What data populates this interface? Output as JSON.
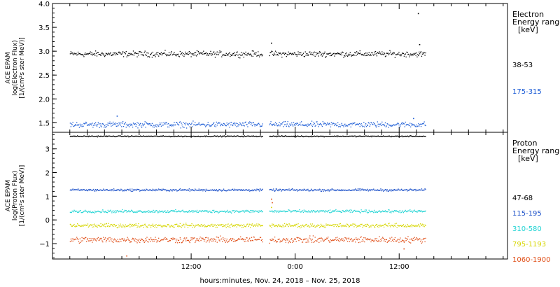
{
  "chart_data": [
    {
      "type": "scatter",
      "panel": "electron",
      "ylabel_lines": [
        "ACE EPAM",
        "log(Electron Flux)",
        "[1/(cm²s ster MeV)]"
      ],
      "ylim": [
        1.3,
        4.0
      ],
      "yticks": [
        {
          "value": 1.5,
          "label": "1.5"
        },
        {
          "value": 2.0,
          "label": "2.0"
        },
        {
          "value": 2.5,
          "label": "2.5"
        },
        {
          "value": 3.0,
          "label": "3.0"
        },
        {
          "value": 3.5,
          "label": "3.5"
        },
        {
          "value": 4.0,
          "label": "4.0"
        }
      ],
      "legend_title": [
        "Electron",
        "Energy ranges",
        "[keV]"
      ],
      "series": [
        {
          "name": "38-53",
          "color": "#000000",
          "level": 2.95,
          "spread": 0.05,
          "outliers": [
            {
              "x": -2.8,
              "y": 3.18
            },
            {
              "x": 14.15,
              "y": 3.8
            },
            {
              "x": 14.3,
              "y": 3.15
            }
          ]
        },
        {
          "name": "175-315",
          "color": "#1a5bd6",
          "level": 1.47,
          "spread": 0.05,
          "outliers": [
            {
              "x": -20.6,
              "y": 1.65
            },
            {
              "x": 13.6,
              "y": 1.6
            }
          ]
        }
      ]
    },
    {
      "type": "scatter",
      "panel": "proton",
      "ylabel_lines": [
        "ACE EPAM",
        "log(Proton Flux)",
        "[1/(cm²s ster MeV)]"
      ],
      "ylim": [
        -1.65,
        3.7
      ],
      "yticks": [
        {
          "value": -1,
          "label": "−1"
        },
        {
          "value": 0,
          "label": "0"
        },
        {
          "value": 1,
          "label": "1"
        },
        {
          "value": 2,
          "label": "2"
        },
        {
          "value": 3,
          "label": "3"
        }
      ],
      "legend_title": [
        "Proton",
        "Energy ranges",
        "[keV]"
      ],
      "series": [
        {
          "name": "47-68",
          "color": "#000000",
          "level": 3.55,
          "spread": 0.02,
          "outliers": []
        },
        {
          "name": "115-195",
          "color": "#1a4fc8",
          "level": 1.28,
          "spread": 0.04,
          "outliers": []
        },
        {
          "name": "310-580",
          "color": "#22d4d4",
          "level": 0.38,
          "spread": 0.05,
          "outliers": []
        },
        {
          "name": "795-1193",
          "color": "#d6d600",
          "level": -0.22,
          "spread": 0.07,
          "outliers": [
            {
              "x": -2.8,
              "y": 0.55
            }
          ]
        },
        {
          "name": "1060-1900",
          "color": "#e0501a",
          "level": -0.82,
          "spread": 0.11,
          "outliers": [
            {
              "x": -2.8,
              "y": 0.9
            },
            {
              "x": -2.7,
              "y": 0.75
            },
            {
              "x": -19.5,
              "y": -1.5
            },
            {
              "x": 12.5,
              "y": -1.2
            }
          ]
        }
      ]
    }
  ],
  "x_axis": {
    "range_hours": [
      -28,
      24.5
    ],
    "ticks": [
      {
        "value": -12,
        "label": "12:00"
      },
      {
        "value": 0,
        "label": "0:00"
      },
      {
        "value": 12,
        "label": "12:00"
      }
    ],
    "minor_step_hours": 2,
    "data_segments": [
      [
        -26.0,
        -3.8
      ],
      [
        -3.0,
        15.0
      ]
    ],
    "label": "hours:minutes, Nov. 24, 2018 – Nov. 25, 2018"
  }
}
